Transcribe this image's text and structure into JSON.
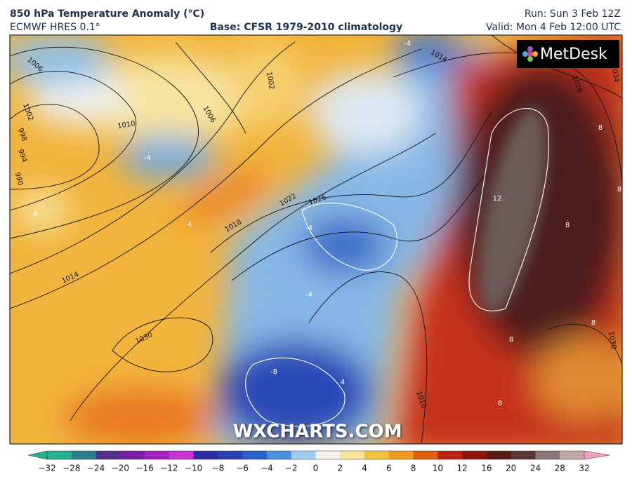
{
  "header": {
    "title": "850 hPa Temperature Anomaly (°C)",
    "model": "ECMWF HRES 0.1°",
    "base": "Base: CFSR 1979-2010 climatology",
    "run": "Run: Sun 3 Feb 12Z",
    "valid": "Valid: Mon 4 Feb 12:00 UTC"
  },
  "map": {
    "logo": "MetDesk",
    "watermark": "WXCHARTS.COM",
    "isobar_labels": [
      "1006",
      "1002",
      "998",
      "994",
      "990",
      "1010",
      "1002",
      "1006",
      "1014",
      "1026",
      "1034",
      "1022",
      "1026",
      "1018",
      "1014",
      "1030",
      "1030",
      "1010"
    ],
    "anomaly_labels": [
      "-4",
      "4",
      "4",
      "-4",
      "12",
      "8",
      "8",
      "8",
      "8",
      "8",
      "8",
      "-8",
      "-4",
      "4",
      "-4"
    ]
  },
  "colorbar": {
    "ticks": [
      "−32",
      "−28",
      "−24",
      "−20",
      "−16",
      "−12",
      "−10",
      "−8",
      "−6",
      "−4",
      "−2",
      "0",
      "2",
      "4",
      "6",
      "8",
      "10",
      "12",
      "16",
      "20",
      "24",
      "28",
      "32"
    ]
  }
}
